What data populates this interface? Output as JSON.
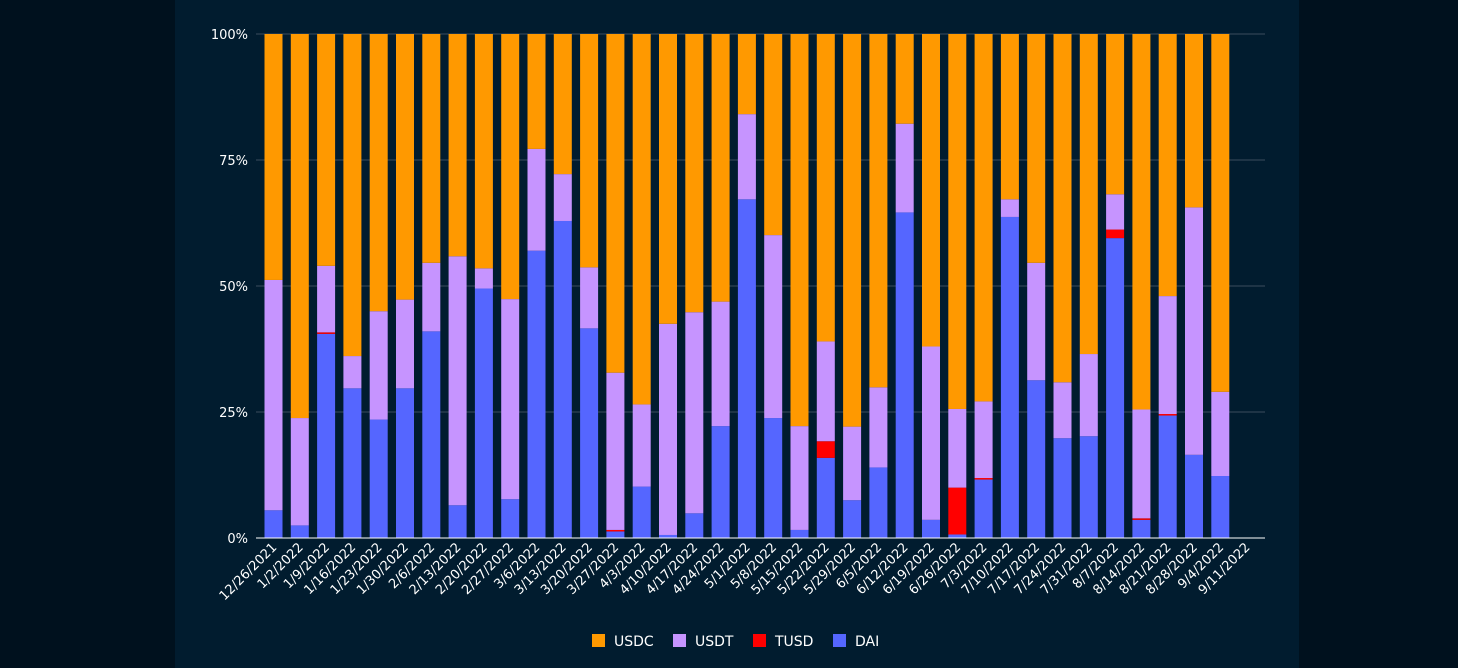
{
  "chart_data": {
    "type": "bar",
    "stacked": true,
    "normalized": true,
    "title": "",
    "xlabel": "",
    "ylabel": "",
    "ylim": [
      0,
      100
    ],
    "yticks": [
      "0%",
      "25%",
      "50%",
      "75%",
      "100%"
    ],
    "categories": [
      "12/26/2021",
      "1/2/2022",
      "1/9/2022",
      "1/16/2022",
      "1/23/2022",
      "1/30/2022",
      "2/6/2022",
      "2/13/2022",
      "2/20/2022",
      "2/27/2022",
      "3/6/2022",
      "3/13/2022",
      "3/20/2022",
      "3/27/2022",
      "4/3/2022",
      "4/10/2022",
      "4/17/2022",
      "4/24/2022",
      "5/1/2022",
      "5/8/2022",
      "5/15/2022",
      "5/22/2022",
      "5/29/2022",
      "6/5/2022",
      "6/12/2022",
      "6/19/2022",
      "6/26/2022",
      "7/3/2022",
      "7/10/2022",
      "7/17/2022",
      "7/24/2022",
      "7/31/2022",
      "8/7/2022",
      "8/14/2022",
      "8/21/2022",
      "8/28/2022",
      "9/4/2022",
      "9/11/2022"
    ],
    "series": [
      {
        "name": "DAI",
        "color": "#5566ff",
        "values": [
          5.5,
          2.5,
          40.5,
          29.7,
          23.5,
          29.7,
          41,
          6.5,
          49.5,
          7.7,
          57,
          62.9,
          41.6,
          1.3,
          10.2,
          0.6,
          4.9,
          22.2,
          67.2,
          23.8,
          1.6,
          15.9,
          7.5,
          14,
          64.6,
          3.6,
          0.7,
          11.6,
          63.7,
          31.3,
          19.8,
          20.2,
          59.5,
          3.6,
          24.3,
          16.5,
          12.3,
          0
        ]
      },
      {
        "name": "TUSD",
        "color": "#ff0000",
        "values": [
          0,
          0,
          0.3,
          0,
          0,
          0,
          0,
          0,
          0,
          0,
          0,
          0,
          0,
          0.3,
          0,
          0,
          0,
          0,
          0,
          0,
          0,
          3.3,
          0,
          0,
          0,
          0,
          9.3,
          0.3,
          0,
          0,
          0,
          0,
          1.7,
          0.3,
          0.3,
          0,
          0,
          0
        ]
      },
      {
        "name": "USDT",
        "color": "#c694ff",
        "values": [
          45.7,
          21.3,
          13.2,
          6.4,
          21.5,
          17.6,
          13.6,
          49.4,
          4,
          39.7,
          20.2,
          9.3,
          12.1,
          31.2,
          16.3,
          41.9,
          39.9,
          24.7,
          16.9,
          36.3,
          20.6,
          19.8,
          14.6,
          15.9,
          17.6,
          34.4,
          15.6,
          15.2,
          3.5,
          23.3,
          11.1,
          16.3,
          7,
          21.6,
          23.4,
          49.1,
          16.7,
          0
        ]
      },
      {
        "name": "USDC",
        "color": "#ff9900",
        "values": [
          48.8,
          76.2,
          46,
          63.9,
          55,
          52.7,
          45.4,
          44.1,
          46.5,
          52.6,
          22.8,
          27.8,
          46.3,
          67.2,
          73.5,
          57.5,
          55.2,
          53.1,
          15.9,
          39.9,
          77.8,
          61,
          77.9,
          70.1,
          17.8,
          62,
          74.4,
          72.9,
          32.8,
          45.4,
          69.1,
          63.5,
          31.8,
          74.5,
          52,
          34.4,
          71,
          0
        ]
      }
    ],
    "legend": [
      "USDC",
      "USDT",
      "TUSD",
      "DAI"
    ],
    "legend_position": "bottom-center",
    "grid": true
  }
}
